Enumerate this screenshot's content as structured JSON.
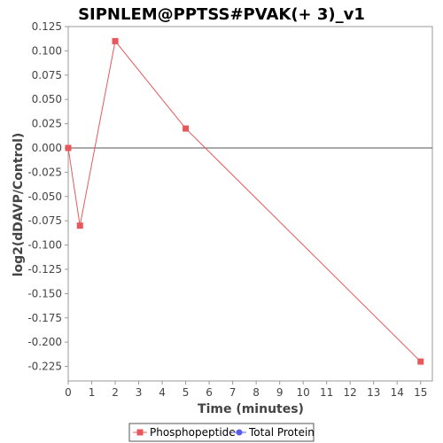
{
  "chart_data": {
    "type": "line",
    "title": "SIPNLEM@PPTSS#PVAK(+ 3)_v1",
    "xlabel": "Time (minutes)",
    "ylabel": "log2(dDAVP/Control)",
    "xlim": [
      0,
      15.5
    ],
    "ylim": [
      -0.24,
      0.125
    ],
    "xticks": [
      0,
      1,
      2,
      3,
      4,
      5,
      6,
      7,
      8,
      9,
      10,
      11,
      12,
      13,
      14,
      15
    ],
    "yticks": [
      0.125,
      0.1,
      0.075,
      0.05,
      0.025,
      0.0,
      -0.025,
      -0.05,
      -0.075,
      -0.1,
      -0.125,
      -0.15,
      -0.175,
      -0.2,
      -0.225
    ],
    "ytick_labels": [
      "0.125",
      "0.100",
      "0.075",
      "0.050",
      "0.025",
      "0.000",
      "-0.025",
      "-0.050",
      "-0.075",
      "-0.100",
      "-0.125",
      "-0.150",
      "-0.175",
      "-0.200",
      "-0.225"
    ],
    "grid": false,
    "reference_line_y": 0,
    "legend_position": "bottom",
    "series": [
      {
        "name": "Phosphopeptide",
        "color": "#e8585a",
        "marker": "square",
        "x": [
          0,
          0.5,
          2,
          5,
          15
        ],
        "y": [
          0.0,
          -0.08,
          0.11,
          0.02,
          -0.22
        ]
      },
      {
        "name": "Total Protein",
        "color": "#5a5af0",
        "marker": "circle",
        "x": [],
        "y": []
      }
    ]
  }
}
